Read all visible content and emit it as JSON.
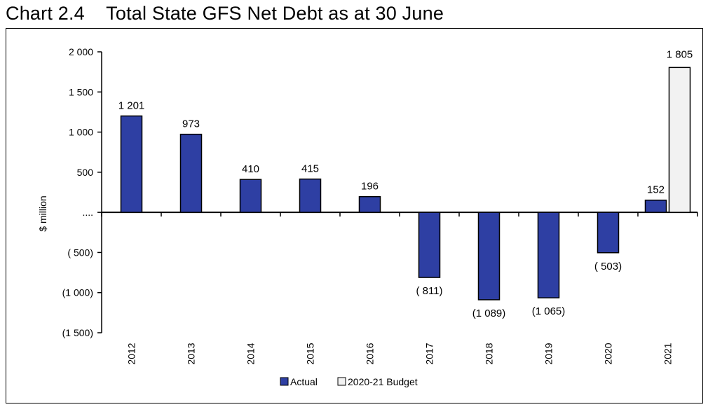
{
  "title": "Chart 2.4    Total State GFS Net Debt as at 30 June",
  "chart_data": {
    "type": "bar",
    "title": "Total State GFS Net Debt as at 30 June",
    "ylabel": "$ million",
    "xlabel": "",
    "ylim": [
      -1500,
      2000
    ],
    "yticks": [
      2000,
      1500,
      1000,
      500,
      0,
      -500,
      -1000,
      -1500
    ],
    "ytick_labels": [
      "2 000",
      "1 500",
      "1 000",
      "500",
      "....",
      "( 500)",
      "(1 000)",
      "(1 500)"
    ],
    "categories": [
      "2012",
      "2013",
      "2014",
      "2015",
      "2016",
      "2017",
      "2018",
      "2019",
      "2020",
      "2021"
    ],
    "series": [
      {
        "name": "Actual",
        "color": "#2E3FA3",
        "values": [
          1201,
          973,
          410,
          415,
          196,
          -811,
          -1089,
          -1065,
          -503,
          152
        ],
        "labels": [
          "1 201",
          "973",
          "410",
          "415",
          "196",
          "( 811)",
          "(1 089)",
          "(1 065)",
          "( 503)",
          "152"
        ]
      },
      {
        "name": "2020-21 Budget",
        "color": "#F2F2F2",
        "values": [
          null,
          null,
          null,
          null,
          null,
          null,
          null,
          null,
          null,
          1805
        ],
        "labels": [
          null,
          null,
          null,
          null,
          null,
          null,
          null,
          null,
          null,
          "1 805"
        ]
      }
    ],
    "legend_position": "bottom",
    "grid": false
  }
}
